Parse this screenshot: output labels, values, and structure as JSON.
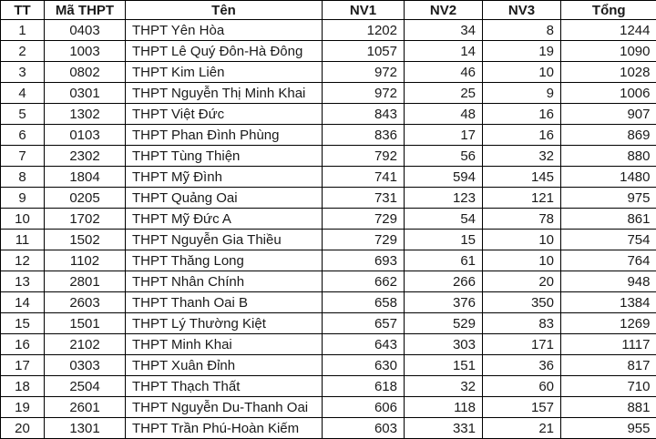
{
  "colors": {
    "border": "#000000",
    "text": "#1a1a1a",
    "background": "#ffffff"
  },
  "table": {
    "columns": [
      {
        "key": "tt",
        "label": "TT"
      },
      {
        "key": "ma",
        "label": "Mã THPT"
      },
      {
        "key": "ten",
        "label": "Tên"
      },
      {
        "key": "nv1",
        "label": "NV1"
      },
      {
        "key": "nv2",
        "label": "NV2"
      },
      {
        "key": "nv3",
        "label": "NV3"
      },
      {
        "key": "tong",
        "label": "Tổng"
      }
    ],
    "rows": [
      [
        "1",
        "0403",
        "THPT Yên Hòa",
        "1202",
        "34",
        "8",
        "1244"
      ],
      [
        "2",
        "1003",
        "THPT Lê Quý Đôn-Hà Đông",
        "1057",
        "14",
        "19",
        "1090"
      ],
      [
        "3",
        "0802",
        "THPT Kim Liên",
        "972",
        "46",
        "10",
        "1028"
      ],
      [
        "4",
        "0301",
        "THPT Nguyễn Thị Minh Khai",
        "972",
        "25",
        "9",
        "1006"
      ],
      [
        "5",
        "1302",
        "THPT Việt Đức",
        "843",
        "48",
        "16",
        "907"
      ],
      [
        "6",
        "0103",
        "THPT Phan Đình Phùng",
        "836",
        "17",
        "16",
        "869"
      ],
      [
        "7",
        "2302",
        "THPT Tùng Thiện",
        "792",
        "56",
        "32",
        "880"
      ],
      [
        "8",
        "1804",
        "THPT Mỹ Đình",
        "741",
        "594",
        "145",
        "1480"
      ],
      [
        "9",
        "0205",
        "THPT Quảng Oai",
        "731",
        "123",
        "121",
        "975"
      ],
      [
        "10",
        "1702",
        "THPT Mỹ Đức A",
        "729",
        "54",
        "78",
        "861"
      ],
      [
        "11",
        "1502",
        "THPT Nguyễn Gia Thiều",
        "729",
        "15",
        "10",
        "754"
      ],
      [
        "12",
        "1102",
        "THPT Thăng Long",
        "693",
        "61",
        "10",
        "764"
      ],
      [
        "13",
        "2801",
        "THPT Nhân Chính",
        "662",
        "266",
        "20",
        "948"
      ],
      [
        "14",
        "2603",
        "THPT Thanh Oai B",
        "658",
        "376",
        "350",
        "1384"
      ],
      [
        "15",
        "1501",
        "THPT Lý Thường Kiệt",
        "657",
        "529",
        "83",
        "1269"
      ],
      [
        "16",
        "2102",
        "THPT Minh Khai",
        "643",
        "303",
        "171",
        "1117"
      ],
      [
        "17",
        "0303",
        "THPT Xuân Đỉnh",
        "630",
        "151",
        "36",
        "817"
      ],
      [
        "18",
        "2504",
        "THPT Thạch Thất",
        "618",
        "32",
        "60",
        "710"
      ],
      [
        "19",
        "2601",
        "THPT Nguyễn Du-Thanh Oai",
        "606",
        "118",
        "157",
        "881"
      ],
      [
        "20",
        "1301",
        "THPT Trần Phú-Hoàn Kiếm",
        "603",
        "331",
        "21",
        "955"
      ]
    ]
  }
}
